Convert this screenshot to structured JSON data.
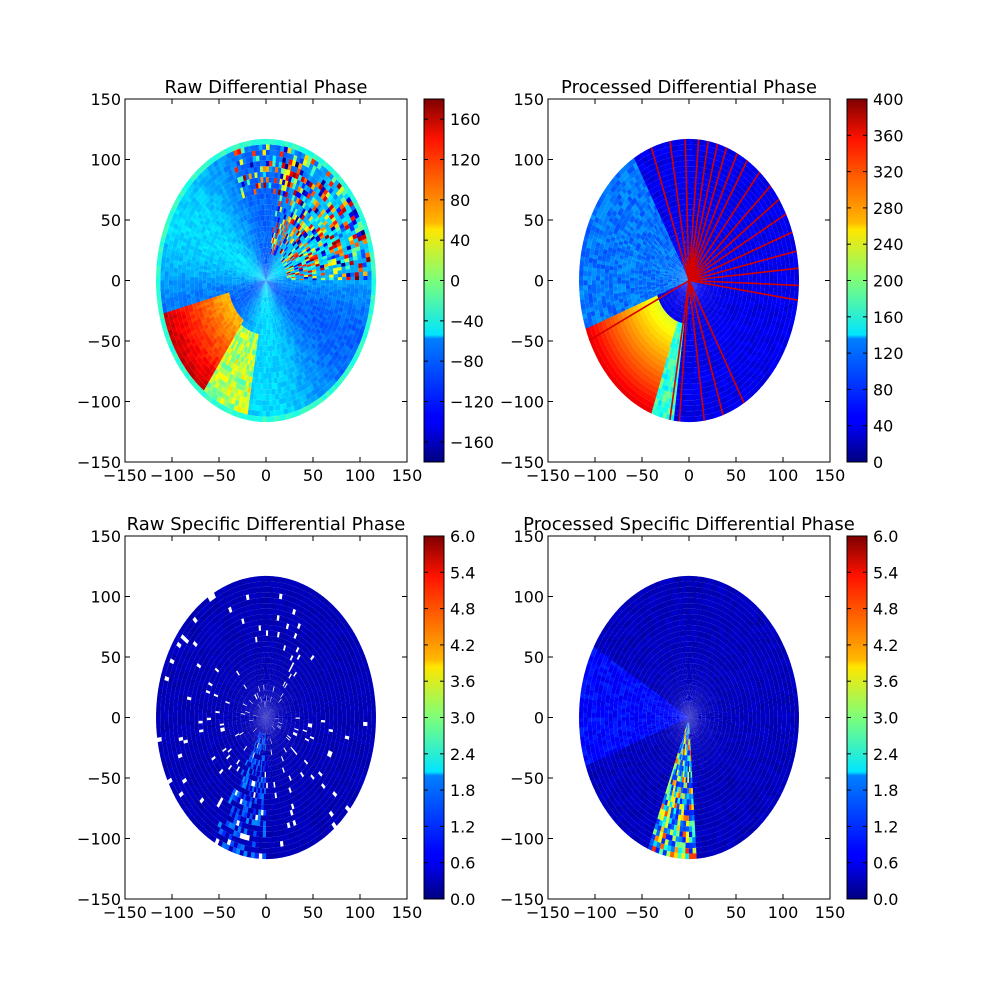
{
  "chart_data": [
    {
      "type": "heatmap",
      "title": "Raw Differential Phase",
      "x_ticks": [
        -150,
        -100,
        -50,
        0,
        50,
        100,
        150
      ],
      "y_ticks": [
        150,
        100,
        50,
        0,
        -50,
        -100,
        -150
      ],
      "xlim": [
        -150,
        150
      ],
      "ylim": [
        -150,
        150
      ],
      "max_range": 117,
      "field": "raw_phidp",
      "colorbar": {
        "min": -180,
        "max": 180,
        "ticks": [
          160,
          120,
          80,
          40,
          0,
          -40,
          -80,
          -120,
          -160
        ],
        "tick_labels": [
          "160",
          "120",
          "80",
          "40",
          "0",
          "−40",
          "−80",
          "−120",
          "−160"
        ],
        "colormap": "jet"
      }
    },
    {
      "type": "heatmap",
      "title": "Processed Differential Phase",
      "x_ticks": [
        -150,
        -100,
        -50,
        0,
        50,
        100,
        150
      ],
      "y_ticks": [
        150,
        100,
        50,
        0,
        -50,
        -100,
        -150
      ],
      "xlim": [
        -150,
        150
      ],
      "ylim": [
        -150,
        150
      ],
      "max_range": 117,
      "field": "proc_phidp",
      "colorbar": {
        "min": 0,
        "max": 400,
        "ticks": [
          400,
          360,
          320,
          280,
          240,
          200,
          160,
          120,
          80,
          40,
          0
        ],
        "tick_labels": [
          "400",
          "360",
          "320",
          "280",
          "240",
          "200",
          "160",
          "120",
          "80",
          "40",
          "0"
        ],
        "colormap": "jet"
      }
    },
    {
      "type": "heatmap",
      "title": "Raw Specific Differential Phase",
      "x_ticks": [
        -150,
        -100,
        -50,
        0,
        50,
        100,
        150
      ],
      "y_ticks": [
        150,
        100,
        50,
        0,
        -50,
        -100,
        -150
      ],
      "xlim": [
        -150,
        150
      ],
      "ylim": [
        -150,
        150
      ],
      "max_range": 117,
      "field": "raw_kdp",
      "colorbar": {
        "min": 0,
        "max": 6,
        "ticks": [
          6.0,
          5.4,
          4.8,
          4.2,
          3.6,
          3.0,
          2.4,
          1.8,
          1.2,
          0.6,
          0.0
        ],
        "tick_labels": [
          "6.0",
          "5.4",
          "4.8",
          "4.2",
          "3.6",
          "3.0",
          "2.4",
          "1.8",
          "1.2",
          "0.6",
          "0.0"
        ],
        "colormap": "jet"
      }
    },
    {
      "type": "heatmap",
      "title": "Processed Specific Differential Phase",
      "x_ticks": [
        -150,
        -100,
        -50,
        0,
        50,
        100,
        150
      ],
      "y_ticks": [
        150,
        100,
        50,
        0,
        -50,
        -100,
        -150
      ],
      "xlim": [
        -150,
        150
      ],
      "ylim": [
        -150,
        150
      ],
      "max_range": 117,
      "field": "proc_kdp",
      "colorbar": {
        "min": 0,
        "max": 6,
        "ticks": [
          6.0,
          5.4,
          4.8,
          4.2,
          3.6,
          3.0,
          2.4,
          1.8,
          1.2,
          0.6,
          0.0
        ],
        "tick_labels": [
          "6.0",
          "5.4",
          "4.8",
          "4.2",
          "3.6",
          "3.0",
          "2.4",
          "1.8",
          "1.2",
          "0.6",
          "0.0"
        ],
        "colormap": "jet"
      }
    }
  ]
}
